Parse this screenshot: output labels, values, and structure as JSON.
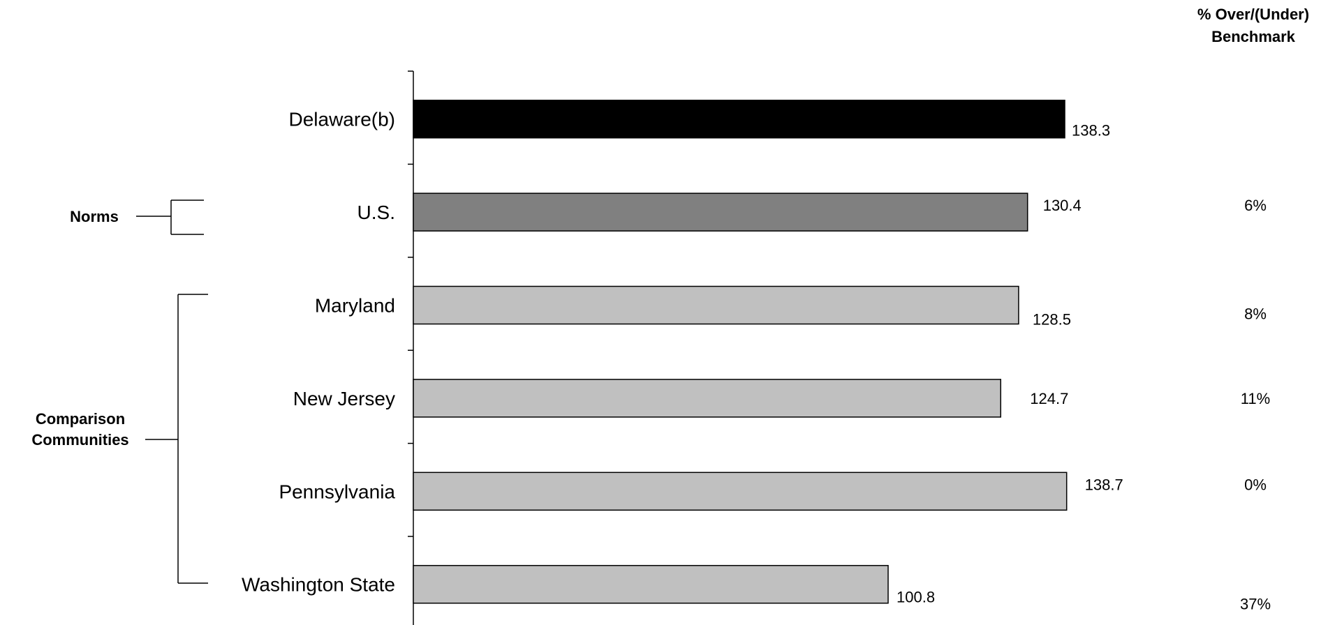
{
  "chart_data": {
    "type": "bar",
    "orientation": "horizontal",
    "categories": [
      "Delaware(b)",
      "U.S.",
      "Maryland",
      "New Jersey",
      "Pennsylvania",
      "Washington State"
    ],
    "values": [
      138.3,
      130.4,
      128.5,
      124.7,
      138.7,
      100.8
    ],
    "value_labels": [
      "138.3",
      "130.4",
      "128.5",
      "124.7",
      "138.7",
      "100.8"
    ],
    "pct_over_under": [
      "",
      "6%",
      "8%",
      "11%",
      "0%",
      "37%"
    ],
    "bar_colors": [
      "#000000",
      "#808080",
      "#c0c0c0",
      "#c0c0c0",
      "#c0c0c0",
      "#c0c0c0"
    ],
    "xlim": [
      0,
      140
    ],
    "right_header": [
      "% Over/(Under)",
      "Benchmark"
    ],
    "groups": [
      {
        "label": [
          "Norms"
        ],
        "categories": [
          "U.S."
        ]
      },
      {
        "label": [
          "Comparison",
          "Communities"
        ],
        "categories": [
          "Maryland",
          "New Jersey",
          "Pennsylvania",
          "Washington State"
        ]
      }
    ],
    "grid": false,
    "legend": "none"
  }
}
